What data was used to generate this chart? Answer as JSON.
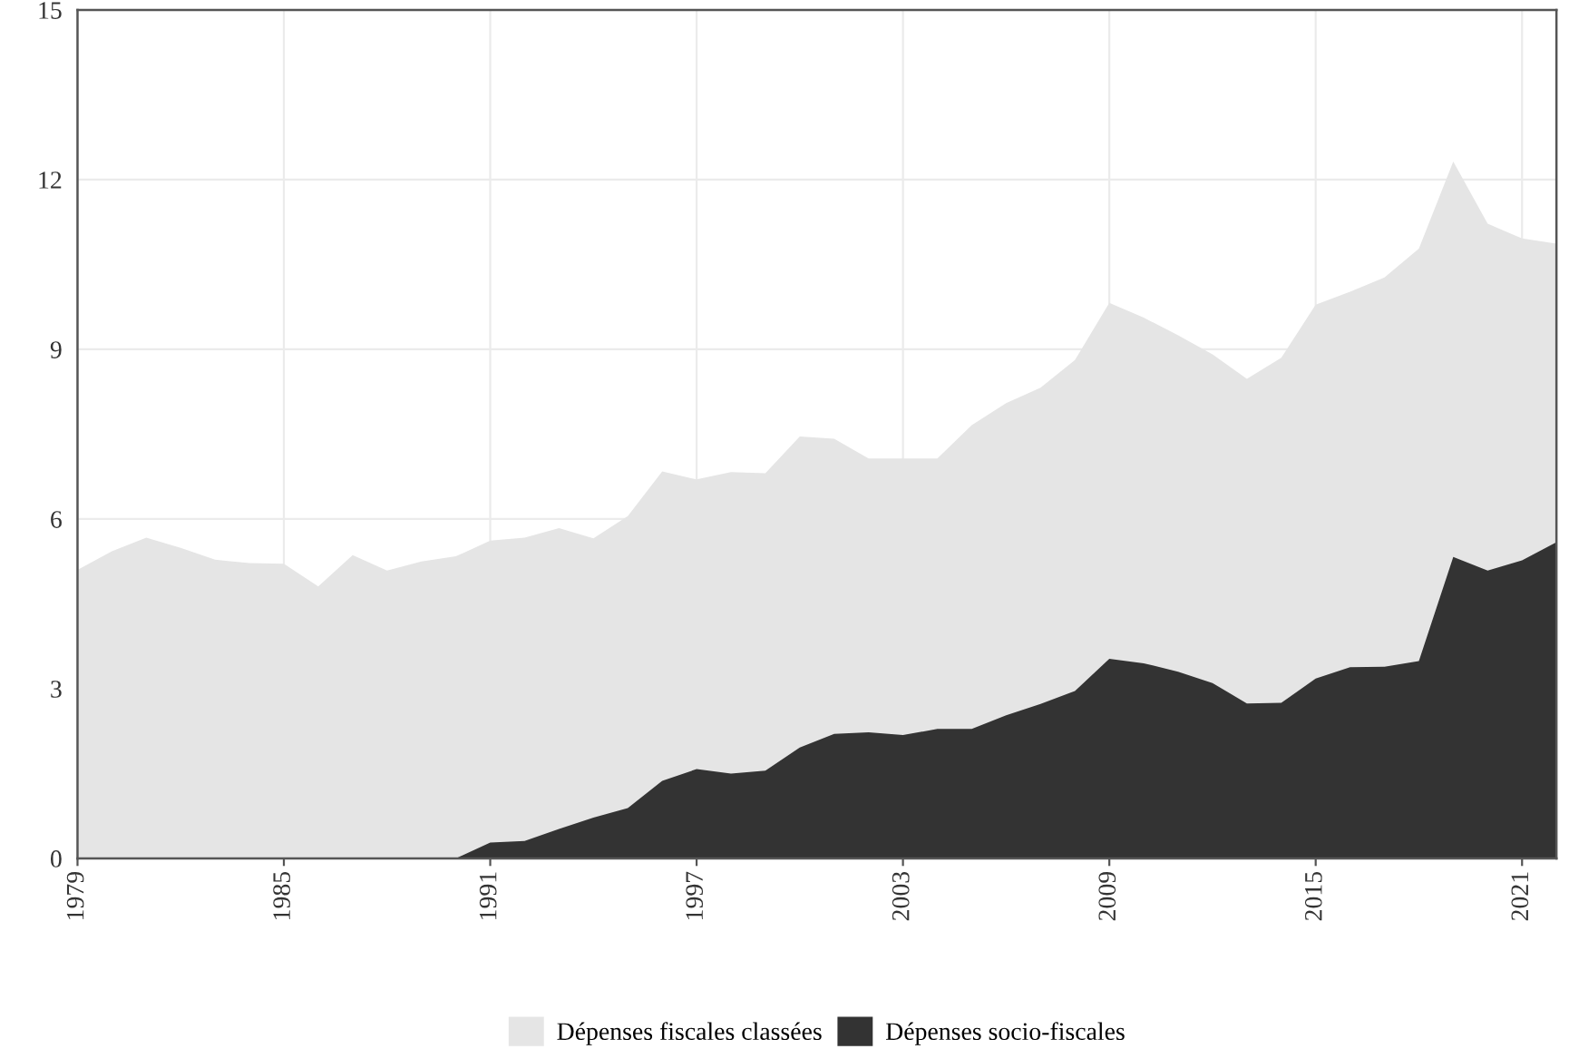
{
  "chart_data": {
    "type": "area",
    "x": [
      1979,
      1980,
      1981,
      1982,
      1983,
      1984,
      1985,
      1986,
      1987,
      1988,
      1989,
      1990,
      1991,
      1992,
      1993,
      1994,
      1995,
      1996,
      1997,
      1998,
      1999,
      2000,
      2001,
      2002,
      2003,
      2004,
      2005,
      2006,
      2007,
      2008,
      2009,
      2010,
      2011,
      2012,
      2013,
      2014,
      2015,
      2016,
      2017,
      2018,
      2019,
      2020,
      2021,
      2022
    ],
    "series": [
      {
        "name": "Dépenses fiscales classées",
        "color": "#e5e5e5",
        "values": [
          5.1,
          5.43,
          5.67,
          5.49,
          5.28,
          5.22,
          5.21,
          4.81,
          5.36,
          5.09,
          5.25,
          5.34,
          5.62,
          5.67,
          5.84,
          5.66,
          6.05,
          6.84,
          6.7,
          6.83,
          6.81,
          7.46,
          7.42,
          7.07,
          7.07,
          7.07,
          7.66,
          8.05,
          8.32,
          8.81,
          9.82,
          9.56,
          9.25,
          8.91,
          8.48,
          8.85,
          9.79,
          10.02,
          10.27,
          10.78,
          12.32,
          11.22,
          10.96,
          10.87
        ]
      },
      {
        "name": "Dépenses socio-fiscales",
        "color": "#333333",
        "values": [
          0,
          0,
          0,
          0,
          0,
          0,
          0,
          0,
          0,
          0,
          0,
          0,
          0.28,
          0.31,
          0.52,
          0.72,
          0.89,
          1.37,
          1.58,
          1.5,
          1.55,
          1.96,
          2.2,
          2.23,
          2.18,
          2.29,
          2.29,
          2.53,
          2.73,
          2.96,
          3.53,
          3.45,
          3.3,
          3.1,
          2.74,
          2.75,
          3.18,
          3.38,
          3.39,
          3.49,
          5.33,
          5.09,
          5.27,
          5.59
        ]
      }
    ],
    "xlim": [
      1979,
      2022
    ],
    "xticks": [
      1979,
      1985,
      1991,
      1997,
      2003,
      2009,
      2015,
      2021
    ],
    "ylim": [
      0,
      15
    ],
    "yticks": [
      0,
      3,
      6,
      9,
      12,
      15
    ],
    "grid": true,
    "legend": "bottom"
  }
}
